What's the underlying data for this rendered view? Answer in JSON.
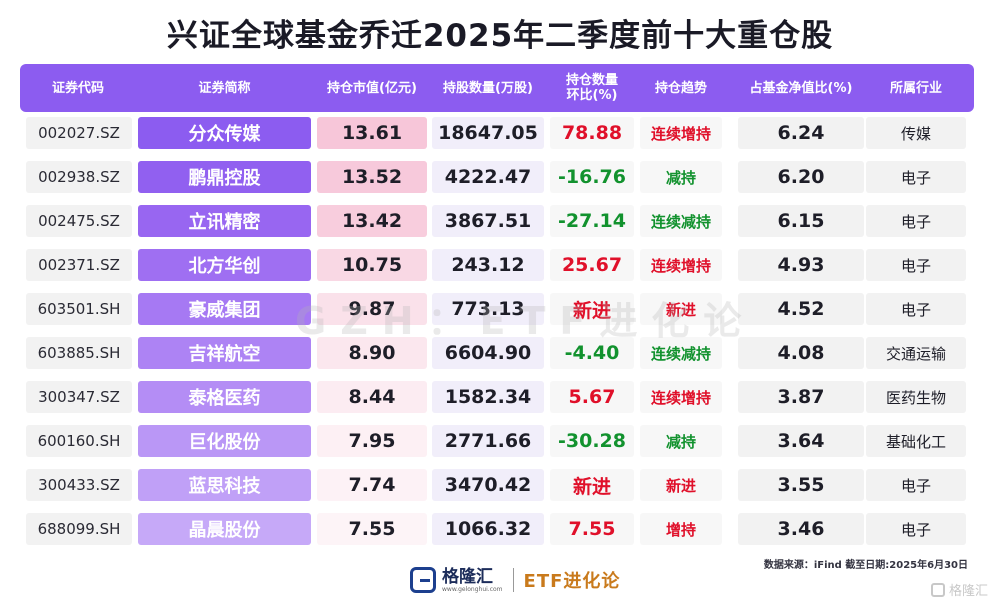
{
  "title": "兴证全球基金乔迁2025年二季度前十大重仓股",
  "headers": [
    "证券代码",
    "证券简称",
    "持仓市值(亿元)",
    "持股数量(万股)",
    "持仓数量环比(%)",
    "持仓趋势",
    "占基金净值比(%)",
    "所属行业"
  ],
  "rows": [
    {
      "code": "002027.SZ",
      "name": "分众传媒",
      "value": "13.61",
      "shares": "18647.05",
      "change": "78.88",
      "trend": "连续增持",
      "pct": "6.24",
      "industry": "传媒",
      "change_color": "red",
      "trend_color": "red",
      "value_bg": "#f7c6d9",
      "name_bg": "#8c5cf0"
    },
    {
      "code": "002938.SZ",
      "name": "鹏鼎控股",
      "value": "13.52",
      "shares": "4222.47",
      "change": "-16.76",
      "trend": "减持",
      "pct": "6.20",
      "industry": "电子",
      "change_color": "green",
      "trend_color": "green",
      "value_bg": "#f7c9db",
      "name_bg": "#9160f0"
    },
    {
      "code": "002475.SZ",
      "name": "立讯精密",
      "value": "13.42",
      "shares": "3867.51",
      "change": "-27.14",
      "trend": "连续减持",
      "pct": "6.15",
      "industry": "电子",
      "change_color": "green",
      "trend_color": "green",
      "value_bg": "#f8cddd",
      "name_bg": "#9866f1"
    },
    {
      "code": "002371.SZ",
      "name": "北方华创",
      "value": "10.75",
      "shares": "243.12",
      "change": "25.67",
      "trend": "连续增持",
      "pct": "4.93",
      "industry": "电子",
      "change_color": "red",
      "trend_color": "red",
      "value_bg": "#f9d8e4",
      "name_bg": "#9f6ff2"
    },
    {
      "code": "603501.SH",
      "name": "豪威集团",
      "value": "9.87",
      "shares": "773.13",
      "change": "新进",
      "trend": "新进",
      "pct": "4.52",
      "industry": "电子",
      "change_color": "red",
      "trend_color": "red",
      "value_bg": "#fae1ea",
      "name_bg": "#a679f3"
    },
    {
      "code": "603885.SH",
      "name": "吉祥航空",
      "value": "8.90",
      "shares": "6604.90",
      "change": "-4.40",
      "trend": "连续减持",
      "pct": "4.08",
      "industry": "交通运输",
      "change_color": "green",
      "trend_color": "green",
      "value_bg": "#fbe7ee",
      "name_bg": "#ad83f4"
    },
    {
      "code": "300347.SZ",
      "name": "泰格医药",
      "value": "8.44",
      "shares": "1582.34",
      "change": "5.67",
      "trend": "连续增持",
      "pct": "3.87",
      "industry": "医药生物",
      "change_color": "red",
      "trend_color": "red",
      "value_bg": "#fcecf2",
      "name_bg": "#b48df5"
    },
    {
      "code": "600160.SH",
      "name": "巨化股份",
      "value": "7.95",
      "shares": "2771.66",
      "change": "-30.28",
      "trend": "减持",
      "pct": "3.64",
      "industry": "基础化工",
      "change_color": "green",
      "trend_color": "green",
      "value_bg": "#fdf0f4",
      "name_bg": "#ba97f6"
    },
    {
      "code": "300433.SZ",
      "name": "蓝思科技",
      "value": "7.74",
      "shares": "3470.42",
      "change": "新进",
      "trend": "新进",
      "pct": "3.55",
      "industry": "电子",
      "change_color": "red",
      "trend_color": "red",
      "value_bg": "#fdf2f6",
      "name_bg": "#c0a0f7"
    },
    {
      "code": "688099.SH",
      "name": "晶晨股份",
      "value": "7.55",
      "shares": "1066.32",
      "change": "7.55",
      "trend": "增持",
      "pct": "3.46",
      "industry": "电子",
      "change_color": "red",
      "trend_color": "red",
      "value_bg": "#fdf4f7",
      "name_bg": "#c6a9f8"
    }
  ],
  "watermark": "GZH：ETF进化论",
  "source": "数据来源：iFind 截至日期:2025年6月30日",
  "footer": {
    "brand": "格隆汇",
    "url": "www.gelonghui.com",
    "etf": "ETF进化论"
  },
  "corner_brand": "格隆汇"
}
